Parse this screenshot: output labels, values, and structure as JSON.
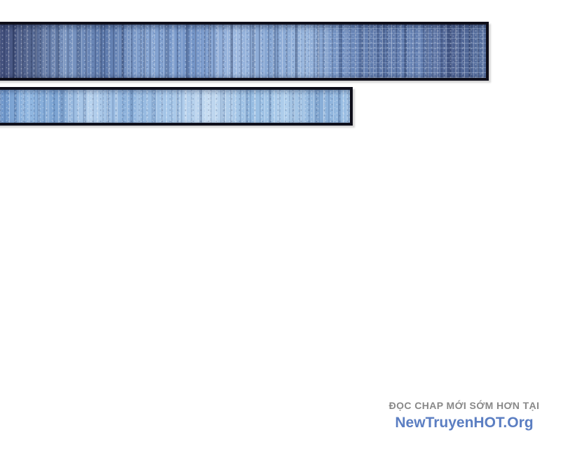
{
  "page": {
    "background_color": "#ffffff",
    "kind": "comic page excerpt"
  },
  "panels": [
    {
      "id": "strip-1",
      "art": "dark blue vertical motion-streak artwork with crosshatch texture at right",
      "border_color": "#0f0f1a",
      "palette": [
        "#44517e",
        "#7a96c2",
        "#9db9e0",
        "#5d77a8"
      ]
    },
    {
      "id": "strip-2",
      "art": "light sky-blue vertical motion-streak artwork",
      "border_color": "#0f0f1a",
      "palette": [
        "#6b93c8",
        "#b7d2ee",
        "#c2d9f0",
        "#88aed8"
      ]
    }
  ],
  "footer": {
    "tagline": "ĐỌC CHAP MỚI SỚM HƠN TẠI",
    "site_name": "NewTruyenHOT.Org",
    "tagline_color": "#888888",
    "site_name_color": "#5b7ec2"
  }
}
